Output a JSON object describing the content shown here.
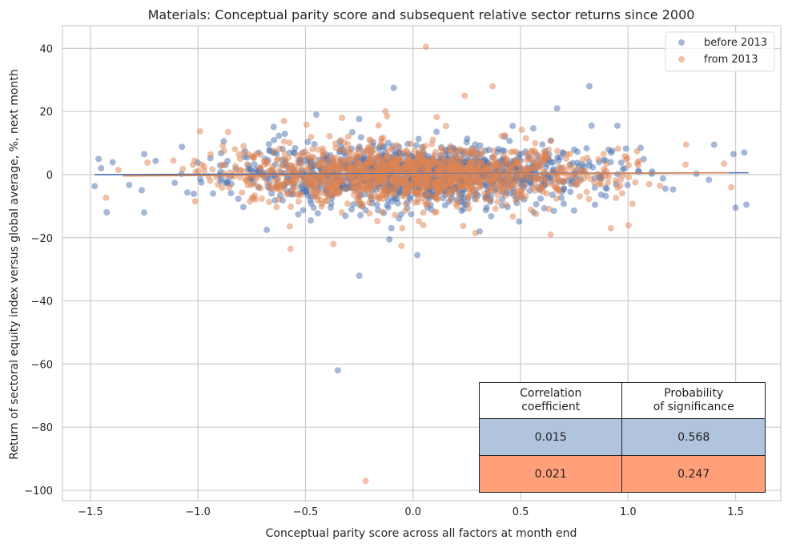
{
  "chart_data": {
    "type": "scatter",
    "title": "Materials: Conceptual parity score and subsequent relative sector returns since 2000",
    "xlabel": "Conceptual parity score across all factors at month end",
    "ylabel": "Return of sectoral equity index versus global average, %, next month",
    "xlim": [
      -1.63,
      1.71
    ],
    "ylim": [
      -103.3,
      47.2
    ],
    "xticks": [
      -1.5,
      -1.0,
      -0.5,
      0.0,
      0.5,
      1.0,
      1.5
    ],
    "xtick_labels": [
      "−1.5",
      "−1.0",
      "−0.5",
      "0.0",
      "0.5",
      "1.0",
      "1.5"
    ],
    "yticks": [
      40,
      20,
      0,
      -20,
      -40,
      -60,
      -80,
      -100
    ],
    "ytick_labels": [
      "40",
      "20",
      "0",
      "−20",
      "−40",
      "−60",
      "−80",
      "−100"
    ],
    "grid": true,
    "legend_placement": "top-right",
    "series": [
      {
        "name": "before 2013",
        "color": "#4c72b0",
        "regression": {
          "x": [
            -1.48,
            1.56
          ],
          "y": [
            0.0,
            0.6
          ]
        },
        "notable_points": [
          [
            0.82,
            28
          ],
          [
            -0.09,
            27.5
          ],
          [
            0.67,
            21
          ],
          [
            -0.45,
            19
          ],
          [
            -0.25,
            -32
          ],
          [
            -0.35,
            -62
          ],
          [
            0.02,
            -25.5
          ],
          [
            -0.11,
            -20.5
          ],
          [
            0.31,
            -18
          ],
          [
            1.5,
            -10.5
          ],
          [
            1.55,
            -9.5
          ],
          [
            -1.25,
            6.5
          ],
          [
            -1.45,
            2
          ],
          [
            1.54,
            7
          ],
          [
            1.4,
            9.5
          ],
          [
            1.49,
            6.5
          ],
          [
            0.83,
            15.5
          ],
          [
            0.95,
            15.5
          ],
          [
            -0.68,
            -17.5
          ],
          [
            -1.25,
            -12
          ]
        ]
      },
      {
        "name": "from 2013",
        "color": "#dd8452",
        "regression": {
          "x": [
            -1.35,
            1.47
          ],
          "y": [
            -0.4,
            0.6
          ]
        },
        "notable_points": [
          [
            0.06,
            40.5
          ],
          [
            0.37,
            28
          ],
          [
            0.24,
            25
          ],
          [
            -0.22,
            -97
          ],
          [
            -0.57,
            -23.5
          ],
          [
            -0.37,
            -22
          ],
          [
            -0.05,
            -17
          ],
          [
            0.29,
            -18.5
          ],
          [
            0.64,
            -19
          ],
          [
            0.92,
            -17
          ],
          [
            -0.6,
            17
          ],
          [
            -0.86,
            13.5
          ],
          [
            -0.33,
            18
          ],
          [
            -0.12,
            18.5
          ],
          [
            1.27,
            9.5
          ],
          [
            1.48,
            -4
          ],
          [
            -1.37,
            1.5
          ]
        ]
      }
    ],
    "table": {
      "headers": [
        [
          "Correlation",
          "coefficient"
        ],
        [
          "Probability",
          "of significance"
        ]
      ],
      "rows": [
        {
          "values": [
            "0.015",
            "0.568"
          ],
          "color": "#b0c4de"
        },
        {
          "values": [
            "0.021",
            "0.247"
          ],
          "color": "#ffa07a"
        }
      ]
    }
  }
}
